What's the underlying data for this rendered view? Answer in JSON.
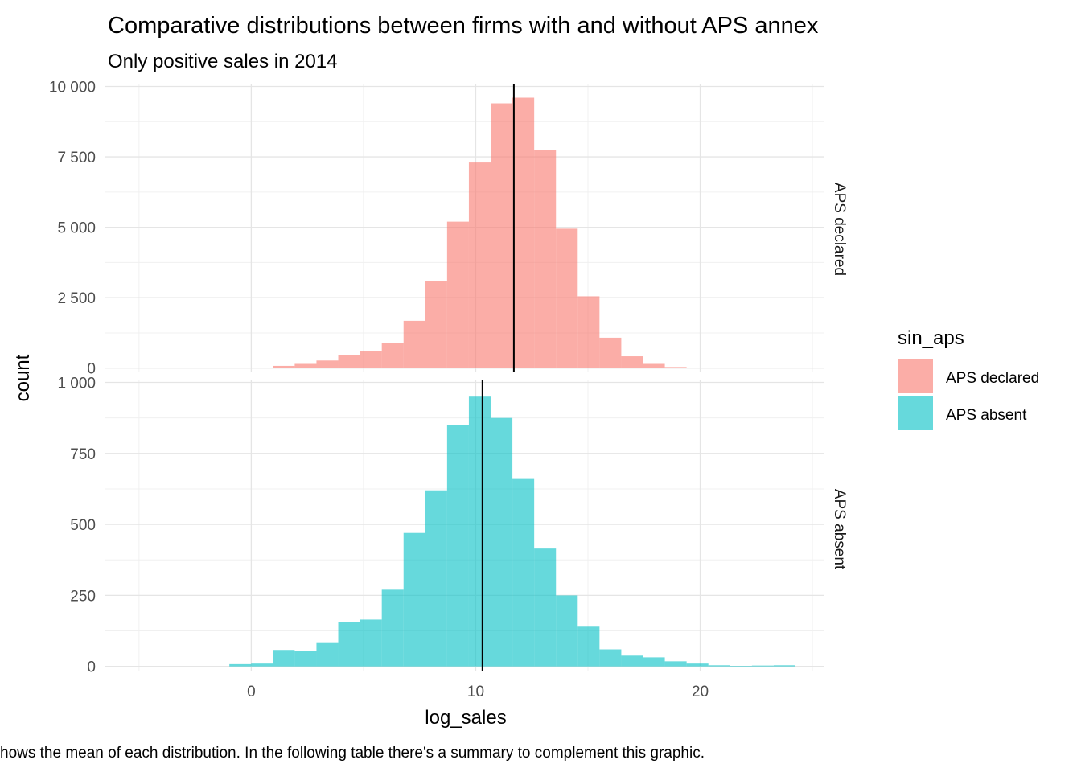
{
  "chart_data": {
    "type": "bar",
    "title": "Comparative distributions between firms with and without APS annex",
    "subtitle": "Only positive sales in 2014",
    "caption": "hows the mean of each distribution. In the following table there's a summary to complement this graphic.",
    "xlabel": "log_sales",
    "ylabel": "count",
    "xlim": [
      -6.5,
      25.5
    ],
    "x_ticks": [
      0,
      10,
      20
    ],
    "x_tick_labels": [
      "0",
      "10",
      "20"
    ],
    "bin_width": 0.97,
    "bin_centers": [
      -0.49,
      0.48,
      1.45,
      2.42,
      3.39,
      4.36,
      5.33,
      6.3,
      7.27,
      8.24,
      9.21,
      10.18,
      11.15,
      12.12,
      13.09,
      14.06,
      15.03,
      16.0,
      16.97,
      17.94,
      18.91,
      19.88,
      20.85,
      21.82,
      22.79,
      23.76
    ],
    "legend": {
      "title": "sin_aps",
      "position": "right",
      "entries": [
        {
          "label": "APS declared",
          "color": "#F8766D"
        },
        {
          "label": "APS absent",
          "color": "#00BFC4"
        }
      ]
    },
    "grid": true,
    "facets": [
      {
        "strip": "APS declared",
        "color": "#F8766D",
        "ylim": [
          -150,
          10100
        ],
        "y_ticks": [
          0,
          2500,
          5000,
          7500,
          10000
        ],
        "y_tick_labels": [
          "0",
          "2 500",
          "5 000",
          "7 500",
          "10 000"
        ],
        "values": [
          0,
          0,
          80,
          150,
          270,
          450,
          600,
          900,
          1680,
          3100,
          5200,
          7300,
          9400,
          9600,
          7750,
          4950,
          2550,
          1080,
          420,
          150,
          40,
          0,
          0,
          0,
          0,
          0
        ],
        "mean": 11.7
      },
      {
        "strip": "APS absent",
        "color": "#00BFC4",
        "ylim": [
          -15,
          1010
        ],
        "y_ticks": [
          0,
          250,
          500,
          750,
          1000
        ],
        "y_tick_labels": [
          "0",
          "250",
          "500",
          "750",
          "1 000"
        ],
        "values": [
          8,
          10,
          58,
          55,
          85,
          155,
          165,
          270,
          470,
          620,
          850,
          950,
          875,
          660,
          415,
          250,
          140,
          60,
          38,
          32,
          18,
          10,
          4,
          2,
          3,
          4
        ],
        "mean": 10.3
      }
    ]
  }
}
